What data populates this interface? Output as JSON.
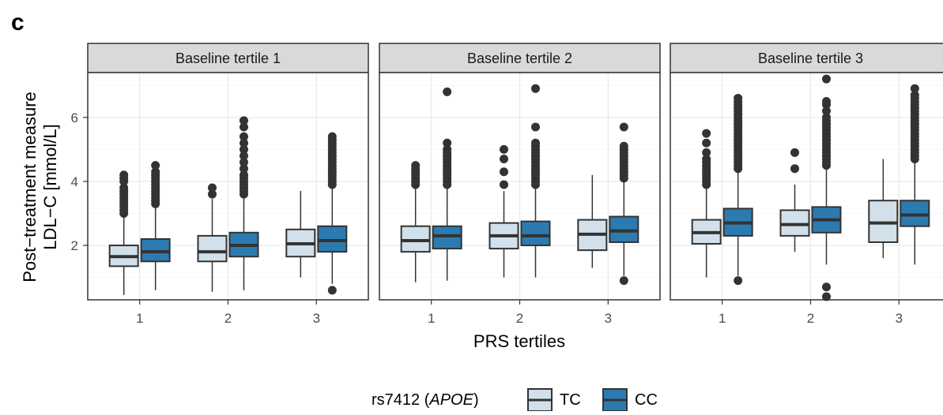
{
  "panel_tag": "c",
  "chart_data": {
    "type": "boxplot",
    "facet_labels": [
      "Baseline tertile 1",
      "Baseline tertile 2",
      "Baseline tertile 3"
    ],
    "xlabel": "PRS tertiles",
    "ylabel_line1": "Post−treatment measure",
    "ylabel_line2": "LDL−C [mmol/L]",
    "x_categories": [
      "1",
      "2",
      "3"
    ],
    "y_ticks": [
      "2",
      "4",
      "6"
    ],
    "ylim": [
      0.3,
      7.4
    ],
    "legend": {
      "title_prefix": "rs7412 (",
      "title_italic": "APOE",
      "title_suffix": ")",
      "placement": "bottom",
      "entries": [
        {
          "name": "TC",
          "color": "#d1e0ea"
        },
        {
          "name": "CC",
          "color": "#2b7bb0"
        }
      ]
    },
    "series_colors": {
      "TC": "#d1e0ea",
      "CC": "#2b7bb0"
    },
    "boxes": [
      {
        "facet": 0,
        "x": "1",
        "group": "TC",
        "lower_whisker": 0.45,
        "q1": 1.35,
        "median": 1.65,
        "q3": 2.0,
        "upper_whisker": 2.9,
        "outliers": [
          3.0,
          3.1,
          3.2,
          3.3,
          3.4,
          3.5,
          3.6,
          3.7,
          3.8,
          4.0,
          4.1,
          4.2
        ]
      },
      {
        "facet": 0,
        "x": "1",
        "group": "CC",
        "lower_whisker": 0.6,
        "q1": 1.5,
        "median": 1.8,
        "q3": 2.2,
        "upper_whisker": 3.2,
        "outliers": [
          3.3,
          3.4,
          3.5,
          3.6,
          3.7,
          3.8,
          3.9,
          4.0,
          4.1,
          4.2,
          4.3,
          4.5
        ]
      },
      {
        "facet": 0,
        "x": "2",
        "group": "TC",
        "lower_whisker": 0.55,
        "q1": 1.5,
        "median": 1.8,
        "q3": 2.3,
        "upper_whisker": 3.45,
        "outliers": [
          3.6,
          3.8
        ]
      },
      {
        "facet": 0,
        "x": "2",
        "group": "CC",
        "lower_whisker": 0.6,
        "q1": 1.65,
        "median": 2.0,
        "q3": 2.4,
        "upper_whisker": 3.5,
        "outliers": [
          3.6,
          3.7,
          3.8,
          3.9,
          4.0,
          4.1,
          4.2,
          4.4,
          4.6,
          4.8,
          5.0,
          5.2,
          5.4,
          5.7,
          5.9
        ]
      },
      {
        "facet": 0,
        "x": "3",
        "group": "TC",
        "lower_whisker": 1.0,
        "q1": 1.65,
        "median": 2.05,
        "q3": 2.5,
        "upper_whisker": 3.7,
        "outliers": []
      },
      {
        "facet": 0,
        "x": "3",
        "group": "CC",
        "lower_whisker": 0.8,
        "q1": 1.8,
        "median": 2.15,
        "q3": 2.6,
        "upper_whisker": 3.8,
        "outliers": [
          0.6,
          3.9,
          4.0,
          4.1,
          4.2,
          4.3,
          4.4,
          4.5,
          4.6,
          4.7,
          4.8,
          4.9,
          5.0,
          5.1,
          5.2,
          5.3,
          5.4
        ]
      },
      {
        "facet": 1,
        "x": "1",
        "group": "TC",
        "lower_whisker": 0.85,
        "q1": 1.8,
        "median": 2.15,
        "q3": 2.6,
        "upper_whisker": 3.8,
        "outliers": [
          3.9,
          4.0,
          4.1,
          4.2,
          4.3,
          4.4,
          4.5
        ]
      },
      {
        "facet": 1,
        "x": "1",
        "group": "CC",
        "lower_whisker": 0.9,
        "q1": 1.9,
        "median": 2.3,
        "q3": 2.6,
        "upper_whisker": 3.8,
        "outliers": [
          3.9,
          4.0,
          4.1,
          4.2,
          4.3,
          4.4,
          4.5,
          4.6,
          4.7,
          4.8,
          4.9,
          5.0,
          5.2,
          6.8
        ]
      },
      {
        "facet": 1,
        "x": "2",
        "group": "TC",
        "lower_whisker": 1.0,
        "q1": 1.9,
        "median": 2.3,
        "q3": 2.7,
        "upper_whisker": 3.7,
        "outliers": [
          3.9,
          4.3,
          4.7,
          5.0
        ]
      },
      {
        "facet": 1,
        "x": "2",
        "group": "CC",
        "lower_whisker": 1.0,
        "q1": 2.0,
        "median": 2.3,
        "q3": 2.75,
        "upper_whisker": 3.8,
        "outliers": [
          3.9,
          4.0,
          4.1,
          4.2,
          4.3,
          4.4,
          4.5,
          4.6,
          4.7,
          4.8,
          4.9,
          5.0,
          5.1,
          5.2,
          5.7,
          6.9
        ]
      },
      {
        "facet": 1,
        "x": "3",
        "group": "TC",
        "lower_whisker": 1.3,
        "q1": 1.85,
        "median": 2.35,
        "q3": 2.8,
        "upper_whisker": 4.2,
        "outliers": []
      },
      {
        "facet": 1,
        "x": "3",
        "group": "CC",
        "lower_whisker": 1.05,
        "q1": 2.1,
        "median": 2.45,
        "q3": 2.9,
        "upper_whisker": 4.0,
        "outliers": [
          0.9,
          4.1,
          4.2,
          4.3,
          4.4,
          4.5,
          4.6,
          4.7,
          4.8,
          4.9,
          5.0,
          5.1,
          5.7
        ]
      },
      {
        "facet": 2,
        "x": "1",
        "group": "TC",
        "lower_whisker": 1.0,
        "q1": 2.05,
        "median": 2.4,
        "q3": 2.8,
        "upper_whisker": 3.85,
        "outliers": [
          3.9,
          4.0,
          4.1,
          4.2,
          4.3,
          4.4,
          4.5,
          4.6,
          4.7,
          4.9,
          5.2,
          5.5
        ]
      },
      {
        "facet": 2,
        "x": "1",
        "group": "CC",
        "lower_whisker": 1.05,
        "q1": 2.3,
        "median": 2.7,
        "q3": 3.15,
        "upper_whisker": 4.3,
        "outliers": [
          0.9,
          4.4,
          4.5,
          4.6,
          4.7,
          4.8,
          4.9,
          5.0,
          5.1,
          5.2,
          5.3,
          5.4,
          5.5,
          5.6,
          5.7,
          5.8,
          5.9,
          6.0,
          6.1,
          6.2,
          6.3,
          6.4,
          6.5,
          6.6
        ]
      },
      {
        "facet": 2,
        "x": "2",
        "group": "TC",
        "lower_whisker": 1.8,
        "q1": 2.3,
        "median": 2.65,
        "q3": 3.1,
        "upper_whisker": 3.9,
        "outliers": [
          4.4,
          4.9
        ]
      },
      {
        "facet": 2,
        "x": "2",
        "group": "CC",
        "lower_whisker": 1.4,
        "q1": 2.4,
        "median": 2.8,
        "q3": 3.2,
        "upper_whisker": 4.4,
        "outliers": [
          0.4,
          0.7,
          4.5,
          4.6,
          4.7,
          4.8,
          4.9,
          5.0,
          5.1,
          5.2,
          5.3,
          5.4,
          5.5,
          5.6,
          5.7,
          5.8,
          5.9,
          6.0,
          6.2,
          6.4,
          6.5,
          7.2
        ]
      },
      {
        "facet": 2,
        "x": "3",
        "group": "TC",
        "lower_whisker": 1.6,
        "q1": 2.1,
        "median": 2.7,
        "q3": 3.4,
        "upper_whisker": 4.7,
        "outliers": []
      },
      {
        "facet": 2,
        "x": "3",
        "group": "CC",
        "lower_whisker": 1.4,
        "q1": 2.6,
        "median": 2.95,
        "q3": 3.4,
        "upper_whisker": 4.6,
        "outliers": [
          4.7,
          4.8,
          4.9,
          5.0,
          5.1,
          5.2,
          5.3,
          5.4,
          5.5,
          5.6,
          5.7,
          5.8,
          5.9,
          6.0,
          6.1,
          6.2,
          6.3,
          6.4,
          6.5,
          6.6,
          6.7,
          6.9
        ]
      }
    ]
  }
}
